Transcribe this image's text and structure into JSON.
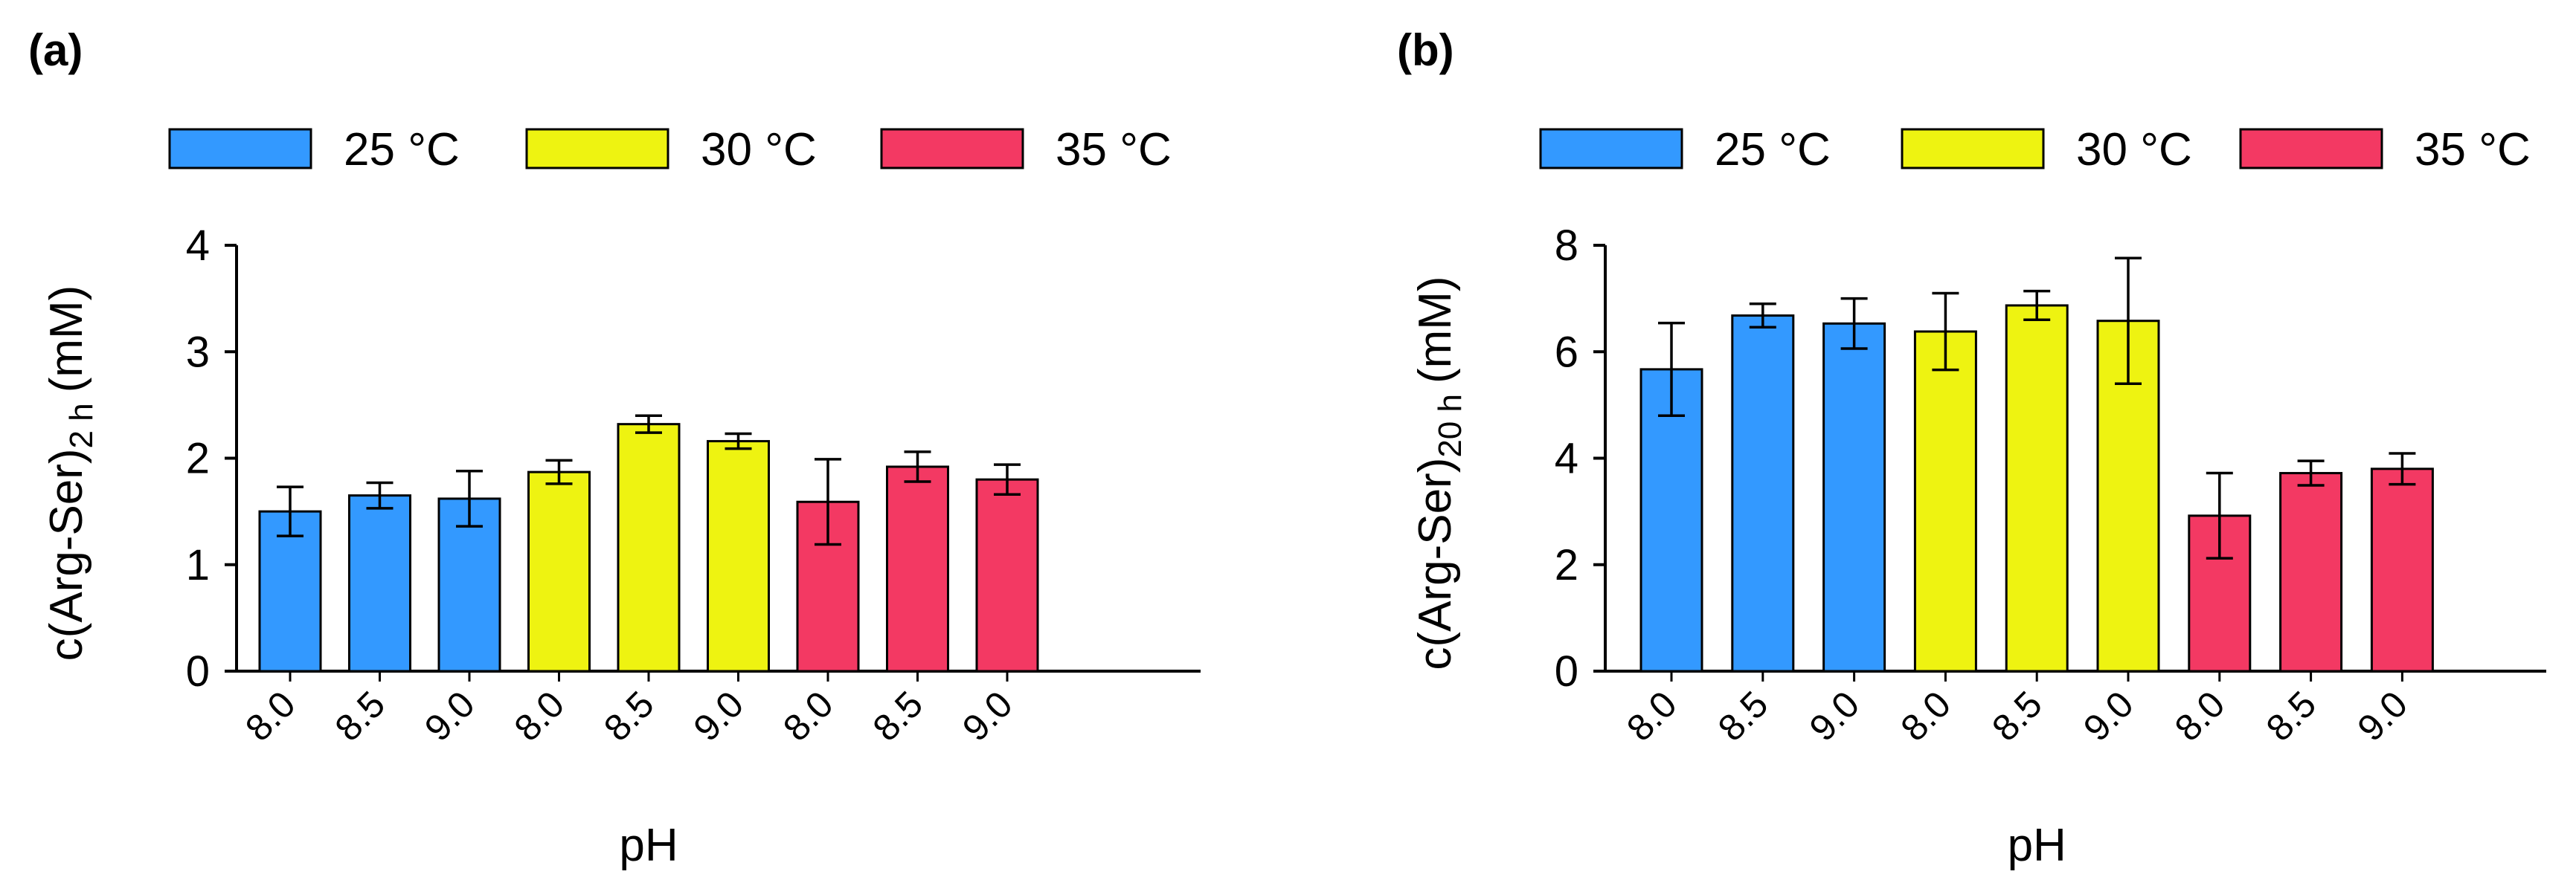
{
  "chart_data": [
    {
      "panel_label": "(a)",
      "type": "bar",
      "categories": [
        "8.0",
        "8.5",
        "9.0",
        "8.0",
        "8.5",
        "9.0",
        "8.0",
        "8.5",
        "9.0"
      ],
      "groups": [
        "25 °C",
        "25 °C",
        "25 °C",
        "30 °C",
        "30 °C",
        "30 °C",
        "35 °C",
        "35 °C",
        "35 °C"
      ],
      "values": [
        1.5,
        1.65,
        1.62,
        1.87,
        2.32,
        2.16,
        1.59,
        1.92,
        1.8
      ],
      "errors": [
        0.23,
        0.12,
        0.26,
        0.11,
        0.08,
        0.07,
        0.4,
        0.14,
        0.14
      ],
      "legend": [
        "25 °C",
        "30 °C",
        "35 °C"
      ],
      "xlabel": "pH",
      "ylabel_main": "c(Arg-Ser)",
      "ylabel_sub": "2 h",
      "ylabel_unit": "(mM)",
      "ylim": [
        0,
        4
      ],
      "yticks": [
        "0",
        "1",
        "2",
        "3",
        "4"
      ]
    },
    {
      "panel_label": "(b)",
      "type": "bar",
      "categories": [
        "8.0",
        "8.5",
        "9.0",
        "8.0",
        "8.5",
        "9.0",
        "8.0",
        "8.5",
        "9.0"
      ],
      "groups": [
        "25 °C",
        "25 °C",
        "25 °C",
        "30 °C",
        "30 °C",
        "30 °C",
        "35 °C",
        "35 °C",
        "35 °C"
      ],
      "values": [
        5.67,
        6.68,
        6.53,
        6.38,
        6.87,
        6.58,
        2.92,
        3.72,
        3.8
      ],
      "errors": [
        0.87,
        0.22,
        0.47,
        0.72,
        0.27,
        1.18,
        0.8,
        0.23,
        0.29
      ],
      "legend": [
        "25 °C",
        "30 °C",
        "35 °C"
      ],
      "xlabel": "pH",
      "ylabel_main": "c(Arg-Ser)",
      "ylabel_sub": "20 h",
      "ylabel_unit": "(mM)",
      "ylim": [
        0,
        8
      ],
      "yticks": [
        "0",
        "2",
        "4",
        "6",
        "8"
      ]
    }
  ],
  "colors": {
    "25 °C": "#3399ff",
    "30 °C": "#eef311",
    "35 °C": "#f33963"
  }
}
